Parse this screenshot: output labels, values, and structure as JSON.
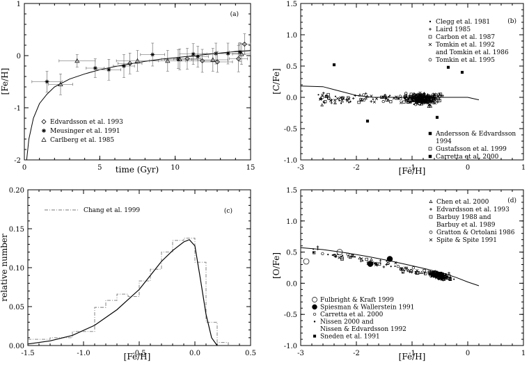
{
  "chart_data": [
    {
      "type": "scatter",
      "panel": "(a)",
      "xlabel": "time (Gyr)",
      "ylabel": "[Fe/H]",
      "xlim": [
        0,
        15
      ],
      "ylim": [
        -2,
        1
      ],
      "xticks": [
        "0",
        "5",
        "10",
        "15"
      ],
      "yticks": [
        "-2",
        "-1",
        "0",
        "1"
      ],
      "legend_placement": "bottom-left",
      "series": [
        {
          "name": "Edvardsson et al. 1993",
          "marker": "diamond",
          "x": [
            7.0,
            10.8,
            11.8,
            12.8,
            14.2,
            14.6
          ],
          "y": [
            -0.15,
            -0.06,
            -0.1,
            -0.12,
            -0.06,
            0.22
          ],
          "xerr": [
            0.8,
            0.9,
            1.0,
            1.0,
            0.6,
            0.4
          ],
          "yerr": [
            0.2,
            0.2,
            0.22,
            0.2,
            0.25,
            0.2
          ]
        },
        {
          "name": "Meusinger et al. 1991",
          "marker": "star",
          "x": [
            1.5,
            4.7,
            5.6,
            6.6,
            8.5,
            10.2,
            11.2,
            11.5,
            12.7,
            13.5,
            14.3
          ],
          "y": [
            -0.5,
            -0.24,
            -0.27,
            -0.2,
            0.02,
            -0.07,
            0.03,
            -0.02,
            0.04,
            0.04,
            0.07
          ],
          "xerr": [
            1.0,
            0.6,
            0.8,
            0.7,
            0.8,
            0.9,
            0.9,
            0.7,
            0.9,
            0.9,
            0.7
          ],
          "yerr": [
            0.2,
            0.18,
            0.2,
            0.22,
            0.22,
            0.18,
            0.2,
            0.2,
            0.2,
            0.2,
            0.18
          ]
        },
        {
          "name": "Carlberg et al. 1985",
          "marker": "triangle",
          "x": [
            2.4,
            3.5,
            7.5,
            9.5,
            10.3,
            12.5,
            14.4
          ],
          "y": [
            -0.55,
            -0.1,
            -0.1,
            -0.1,
            -0.07,
            -0.08,
            0.03
          ],
          "xerr": [
            0.8,
            1.2,
            1.4,
            1.2,
            1.2,
            1.0,
            0.6
          ],
          "yerr": [
            0.2,
            0.12,
            0.2,
            0.2,
            0.2,
            0.22,
            0.2
          ]
        }
      ],
      "model_curve": {
        "x": [
          0.15,
          0.3,
          0.6,
          1.0,
          1.5,
          2.0,
          3.0,
          4.0,
          5.0,
          6.0,
          7.0,
          8.0,
          9.0,
          10.0,
          11.0,
          12.0,
          13.0,
          14.0,
          15.0
        ],
        "y": [
          -2.0,
          -1.6,
          -1.2,
          -0.92,
          -0.74,
          -0.6,
          -0.45,
          -0.35,
          -0.27,
          -0.21,
          -0.16,
          -0.11,
          -0.07,
          -0.04,
          -0.01,
          0.02,
          0.05,
          0.08,
          0.1
        ]
      }
    },
    {
      "type": "scatter",
      "panel": "(b)",
      "xlabel": "[Fe/H]",
      "ylabel": "[C/Fe]",
      "xlim": [
        -3,
        1
      ],
      "ylim": [
        -1,
        1.5
      ],
      "xticks": [
        "-3",
        "-2",
        "-1",
        "0",
        "1"
      ],
      "yticks": [
        "-1.0",
        "-0.5",
        "0.0",
        "0.5",
        "1.0",
        "1.5"
      ],
      "legend_top": [
        "Clegg et al. 1981",
        "Laird 1985",
        "Carbon et al. 1987",
        "Tomkin et al. 1992",
        "and Tomkin et al. 1986",
        "Tomkin et al. 1995"
      ],
      "legend_bottom": [
        "Andersson & Edvardsson",
        "1994",
        "Gustafsson et al. 1999",
        "Carretta et al. 2000"
      ],
      "model_curve": {
        "x": [
          -3.0,
          -2.6,
          -2.3,
          -2.0,
          -1.7,
          -1.4,
          -1.1,
          -0.8,
          -0.5,
          -0.2,
          0.0,
          0.2
        ],
        "y": [
          0.18,
          0.17,
          0.1,
          0.03,
          0.0,
          0.0,
          0.0,
          0.0,
          0.0,
          0.0,
          0.0,
          -0.04
        ]
      }
    },
    {
      "type": "line",
      "panel": "(c)",
      "xlabel": "[Fe/H]",
      "ylabel": "relative number",
      "xlim": [
        -1.5,
        0.5
      ],
      "ylim": [
        0,
        0.2
      ],
      "xticks": [
        "-1.5",
        "-1.0",
        "-0.5",
        "0.0",
        "0.5"
      ],
      "yticks": [
        "0.00",
        "0.05",
        "0.10",
        "0.15",
        "0.20"
      ],
      "series": [
        {
          "name": "Chang et al. 1999",
          "style": "step-dashdot",
          "bin_edges": [
            -1.5,
            -1.3,
            -1.1,
            -0.9,
            -0.8,
            -0.7,
            -0.6,
            -0.5,
            -0.4,
            -0.3,
            -0.2,
            -0.1,
            0.0,
            0.1,
            0.2,
            0.3
          ],
          "values": [
            0.008,
            0.01,
            0.018,
            0.049,
            0.058,
            0.066,
            0.063,
            0.083,
            0.098,
            0.12,
            0.135,
            0.138,
            0.107,
            0.03,
            0.004
          ]
        },
        {
          "name": "model",
          "style": "solid",
          "x": [
            -1.5,
            -1.3,
            -1.1,
            -0.9,
            -0.7,
            -0.5,
            -0.4,
            -0.3,
            -0.2,
            -0.1,
            -0.05,
            0.0,
            0.05,
            0.1,
            0.15,
            0.2
          ],
          "y": [
            0.002,
            0.006,
            0.013,
            0.026,
            0.046,
            0.072,
            0.09,
            0.108,
            0.122,
            0.133,
            0.136,
            0.128,
            0.085,
            0.04,
            0.01,
            0.0
          ]
        }
      ]
    },
    {
      "type": "scatter",
      "panel": "(d)",
      "xlabel": "[Fe/H]",
      "ylabel": "[O/Fe]",
      "xlim": [
        -3,
        1
      ],
      "ylim": [
        -1,
        1.5
      ],
      "xticks": [
        "-3",
        "-2",
        "-1",
        "0",
        "1"
      ],
      "yticks": [
        "-1.0",
        "-0.5",
        "0.0",
        "0.5",
        "1.0",
        "1.5"
      ],
      "legend_top": [
        "Chen et al. 2000",
        "Edvardsson et al. 1993",
        "Barbuy 1988 and",
        "Barbuy et al. 1989",
        "Gratton & Ortolani 1986",
        "Spite & Spite 1991"
      ],
      "legend_bottom": [
        "Fulbright & Kraft 1999",
        "Spiesman & Wallerstein 1991",
        "Carretta et al. 2000",
        "Nissen 2000 and",
        "Nissen & Edvardsson 1992",
        "Sneden et al. 1991"
      ],
      "model_curve": {
        "x": [
          -3.0,
          -2.6,
          -2.2,
          -1.8,
          -1.4,
          -1.0,
          -0.7,
          -0.4,
          -0.2,
          0.0,
          0.2
        ],
        "y": [
          0.57,
          0.54,
          0.49,
          0.43,
          0.36,
          0.28,
          0.22,
          0.15,
          0.09,
          0.02,
          -0.04
        ]
      }
    }
  ]
}
